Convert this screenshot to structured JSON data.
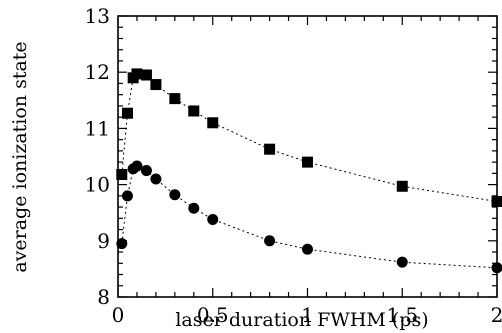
{
  "chart_data": {
    "type": "scatter",
    "xlabel": "laser duration FWHM (ps)",
    "ylabel": "average ionization state",
    "xlim": [
      0,
      2
    ],
    "ylim": [
      8,
      13
    ],
    "x_ticks": [
      0,
      0.5,
      1,
      1.5,
      2
    ],
    "x_tick_labels": [
      "0",
      "0.5",
      "1",
      "1.5",
      "2"
    ],
    "y_ticks": [
      8,
      9,
      10,
      11,
      12,
      13
    ],
    "y_tick_labels": [
      "8",
      "9",
      "10",
      "11",
      "12",
      "13"
    ],
    "grid": false,
    "series": [
      {
        "marker": "square",
        "line": "dotted",
        "x": [
          0.02,
          0.05,
          0.08,
          0.1,
          0.15,
          0.2,
          0.3,
          0.4,
          0.5,
          0.8,
          1.0,
          1.5,
          2.0
        ],
        "y": [
          10.18,
          11.27,
          11.9,
          11.97,
          11.95,
          11.78,
          11.53,
          11.31,
          11.1,
          10.63,
          10.4,
          9.97,
          9.7
        ]
      },
      {
        "marker": "circle",
        "line": "dotted",
        "x": [
          0.02,
          0.05,
          0.08,
          0.1,
          0.15,
          0.2,
          0.3,
          0.4,
          0.5,
          0.8,
          1.0,
          1.5,
          2.0
        ],
        "y": [
          8.95,
          9.8,
          10.28,
          10.33,
          10.25,
          10.1,
          9.82,
          9.58,
          9.38,
          9.0,
          8.85,
          8.62,
          8.52
        ]
      }
    ]
  }
}
